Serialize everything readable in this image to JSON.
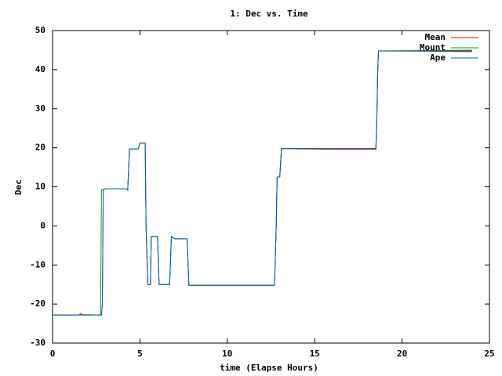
{
  "chart_data": {
    "type": "line",
    "title": "1: Dec vs. Time",
    "x_label": "time (Elapse Hours)",
    "y_label": "Dec",
    "x": [
      0,
      1.5,
      1.6,
      1.7,
      2.75,
      2.8,
      2.85,
      2.9,
      3.0,
      4.2,
      4.3,
      4.35,
      4.4,
      4.9,
      5.0,
      5.3,
      5.35,
      5.45,
      5.6,
      5.65,
      6.0,
      6.1,
      6.7,
      6.8,
      7.0,
      7.7,
      7.8,
      12.7,
      12.8,
      12.85,
      13.0,
      13.1,
      16.0,
      18.5,
      18.55,
      18.6,
      18.65,
      24.0
    ],
    "series": [
      {
        "name": "Mean",
        "color": "#ff0000",
        "values": [
          -22.8,
          -22.8,
          -22.5,
          -22.7,
          -22.8,
          -22.8,
          -20,
          9.3,
          9.5,
          9.5,
          9.2,
          14,
          19.7,
          19.7,
          21.2,
          21.2,
          0,
          -15,
          -15,
          -2.7,
          -2.7,
          -15,
          -15,
          -2.7,
          -3.3,
          -3.3,
          -15.2,
          -15.2,
          0,
          12.5,
          12.5,
          19.8,
          19.6,
          19.6,
          26,
          38.6,
          44.8,
          44.6
        ]
      },
      {
        "name": "Mount",
        "color": "#00a000",
        "values": [
          -22.8,
          -22.8,
          -22.8,
          -22.8,
          -22.8,
          9.3,
          9.3,
          9.3,
          9.5,
          9.5,
          9.2,
          14,
          19.7,
          19.7,
          21.2,
          21.2,
          0,
          -15,
          -15,
          -2.7,
          -2.7,
          -15,
          -15,
          -2.7,
          -3.3,
          -3.3,
          -15.2,
          -15.2,
          0,
          12.5,
          12.5,
          19.8,
          19.8,
          19.8,
          26,
          38.6,
          44.8,
          45
        ]
      },
      {
        "name": "Ape",
        "color": "#0060c0",
        "values": [
          -22.8,
          -22.8,
          -22.8,
          -22.8,
          -22.8,
          -22.8,
          -20,
          9.3,
          9.5,
          9.5,
          9.2,
          14,
          19.7,
          19.7,
          21.2,
          21.2,
          0,
          -15,
          -15,
          -2.7,
          -2.7,
          -15,
          -15,
          -2.7,
          -3.3,
          -3.3,
          -15.2,
          -15.2,
          0,
          12.5,
          12.5,
          19.8,
          19.8,
          19.8,
          26,
          38.6,
          44.8,
          44.8
        ]
      }
    ],
    "xlim": [
      0,
      25
    ],
    "xticks": [
      0,
      5,
      10,
      15,
      20,
      25
    ],
    "ylim": [
      -30,
      50
    ],
    "yticks": [
      -30,
      -20,
      -10,
      0,
      10,
      20,
      30,
      40,
      50
    ],
    "legend": "top-right"
  }
}
